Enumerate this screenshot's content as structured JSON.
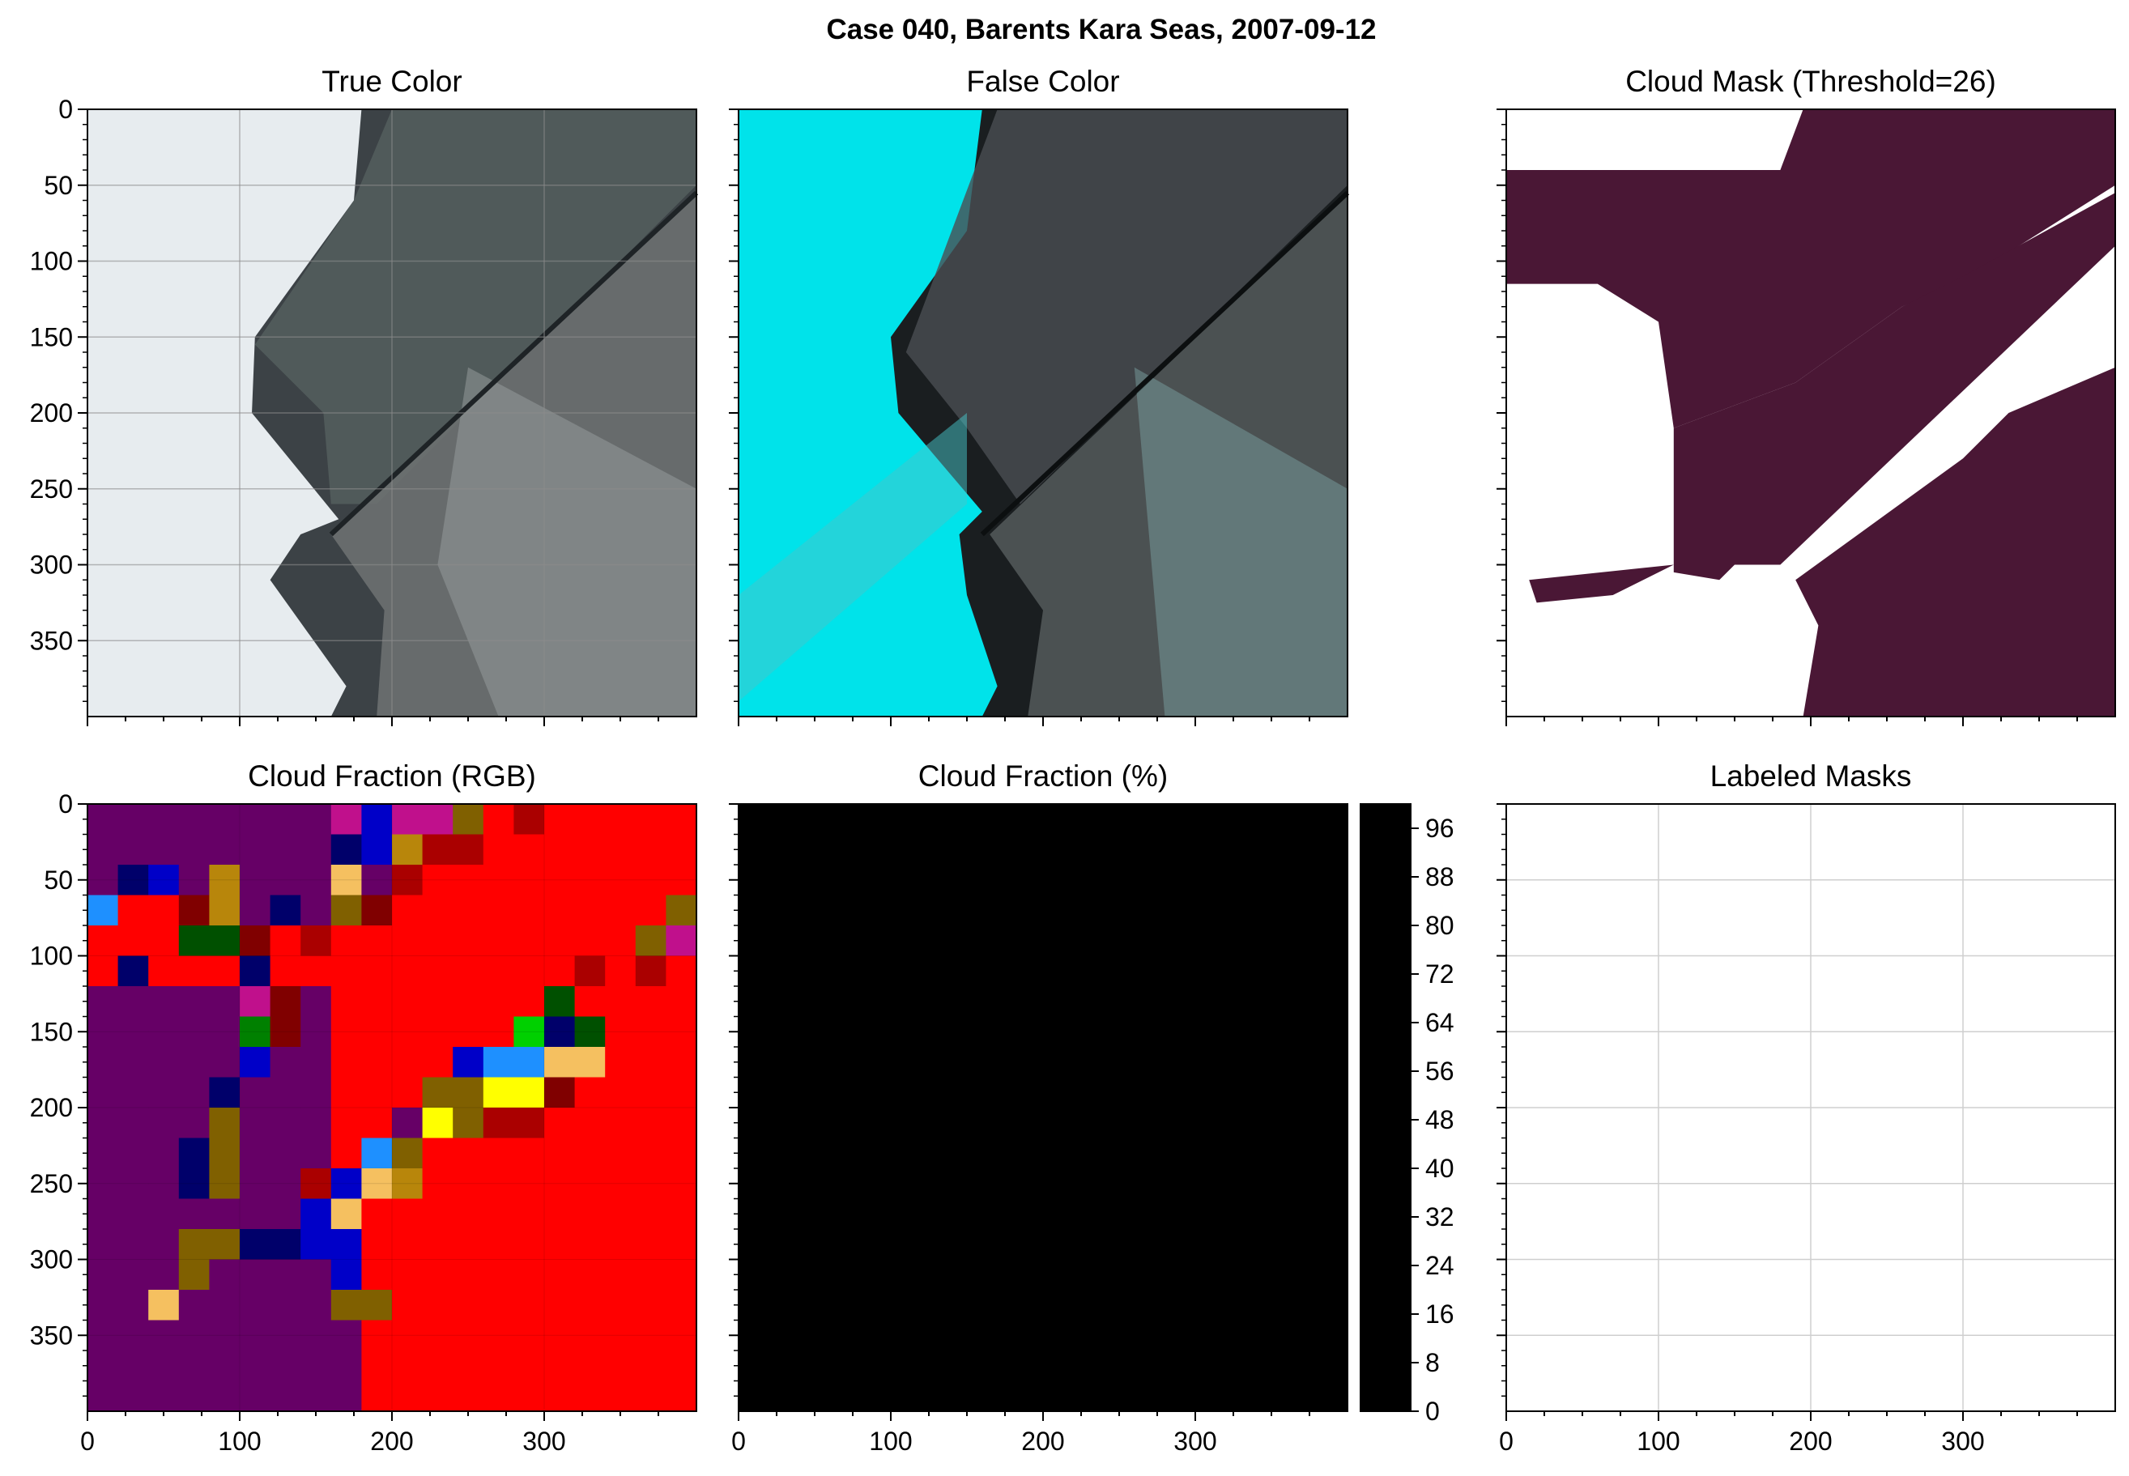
{
  "figure": {
    "suptitle": "Case 040, Barents Kara Seas, 2007-09-12"
  },
  "colors": {
    "sea_dark": "#2b3136",
    "ice_white": "#e7ecef",
    "false_ice": "#00e3ea",
    "mask_purple": "#4a1735",
    "mask_white": "#ffffff",
    "grid": "#cfcfcf"
  },
  "chart_data": [
    {
      "type": "image",
      "title": "True Color",
      "xlim": [
        0,
        400
      ],
      "ylim": [
        400,
        0
      ],
      "xticks": [
        0,
        100,
        200,
        300
      ],
      "yticks": [
        0,
        50,
        100,
        150,
        200,
        250,
        300,
        350
      ],
      "show_xticklabels": false,
      "show_yticklabels": true
    },
    {
      "type": "image",
      "title": "False Color",
      "xlim": [
        0,
        400
      ],
      "ylim": [
        400,
        0
      ],
      "xticks": [
        0,
        100,
        200,
        300
      ],
      "yticks": [
        0,
        50,
        100,
        150,
        200,
        250,
        300,
        350
      ],
      "show_xticklabels": false,
      "show_yticklabels": false
    },
    {
      "type": "image",
      "title": "Cloud Mask (Threshold=26)",
      "xlim": [
        0,
        400
      ],
      "ylim": [
        400,
        0
      ],
      "xticks": [
        0,
        100,
        200,
        300
      ],
      "yticks": [
        0,
        50,
        100,
        150,
        200,
        250,
        300,
        350
      ],
      "show_xticklabels": false,
      "show_yticklabels": false
    },
    {
      "type": "heatmap",
      "title": "Cloud Fraction (RGB)",
      "xlim": [
        0,
        400
      ],
      "ylim": [
        400,
        0
      ],
      "grid_cell": 20,
      "xticks": [
        0,
        100,
        200,
        300
      ],
      "yticks": [
        0,
        50,
        100,
        150,
        200,
        250,
        300,
        350
      ],
      "show_xticklabels": true,
      "show_yticklabels": true,
      "category_colors": {
        "P": "#660066",
        "R": "#ff0000",
        "N": "#00006a",
        "B": "#0000c8",
        "O": "#806000",
        "G": "#b8860b",
        "K": "#f5c060",
        "M": "#800000",
        "D": "#005000",
        "Y": "#ffff00",
        "L": "#00d000",
        "C": "#1e90ff",
        "A": "#aa0000",
        "V": "#c0108c",
        "E": "#008000"
      }
    },
    {
      "type": "heatmap",
      "title": "Cloud Fraction (%)",
      "xlim": [
        0,
        400
      ],
      "ylim": [
        400,
        0
      ],
      "grid_cell": 20,
      "xticks": [
        0,
        100,
        200,
        300
      ],
      "yticks": [
        0,
        50,
        100,
        150,
        200,
        250,
        300,
        350
      ],
      "show_xticklabels": true,
      "show_yticklabels": false,
      "colorbar": {
        "min": 0,
        "max": 100,
        "levels": 25,
        "ticks": [
          0,
          8,
          16,
          24,
          32,
          40,
          48,
          56,
          64,
          72,
          80,
          88,
          96
        ]
      }
    },
    {
      "type": "image",
      "title": "Labeled Masks",
      "xlim": [
        0,
        400
      ],
      "ylim": [
        400,
        0
      ],
      "xticks": [
        0,
        100,
        200,
        300
      ],
      "yticks": [
        0,
        50,
        100,
        150,
        200,
        250,
        300,
        350
      ],
      "show_xticklabels": true,
      "show_yticklabels": false,
      "grid": true
    }
  ]
}
